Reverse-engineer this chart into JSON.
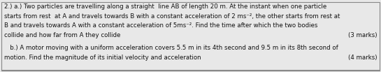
{
  "background_color": "#e8e8e8",
  "border_color": "#888888",
  "text_color": "#111111",
  "font_size": 6.2,
  "lines_a": [
    "2.) a.) Two particles are travelling along a straight  line AB of length 20 m. At the instant when one particle",
    "starts from rest  at A and travels towards B with a constant acceleration of 2 ms⁻², the other starts from rest at",
    "B and travels towards A with a constant acceleration of 5ms⁻². Find the time after which the two bodies",
    "collide and how far from A they collide"
  ],
  "marks_a": "(3 marks)",
  "lines_b": [
    "   b.) A motor moving with a uniform acceleration covers 5.5 m in its 4th second and 9.5 m in its 8th second of",
    "motion. Find the magnitude of its initial velocity and acceleration"
  ],
  "marks_b": "(4 marks)"
}
